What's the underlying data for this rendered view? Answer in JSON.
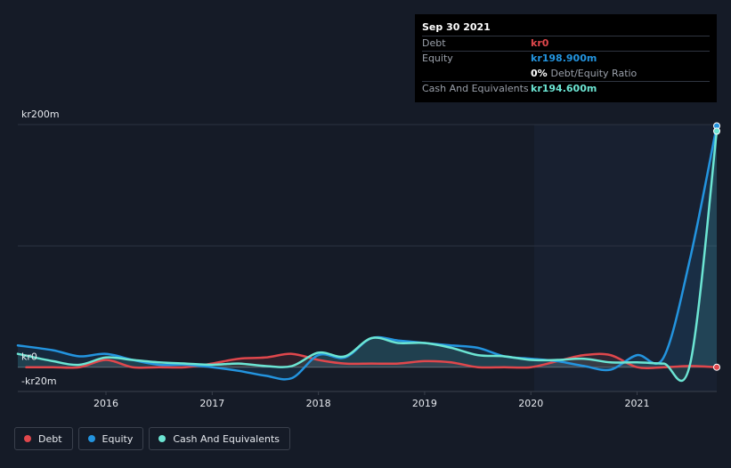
{
  "tooltip": {
    "date": "Sep 30 2021",
    "rows": [
      {
        "label": "Debt",
        "value": "kr0",
        "color": "#e0474c"
      },
      {
        "label": "Equity",
        "value": "kr198.900m",
        "color": "#2394df"
      },
      {
        "label": "",
        "value": "0%",
        "sub": "Debt/Equity Ratio",
        "color": "#ffffff"
      },
      {
        "label": "Cash And Equivalents",
        "value": "kr194.600m",
        "color": "#6ce5d3"
      }
    ]
  },
  "legend": [
    {
      "label": "Debt",
      "color": "#e0474c"
    },
    {
      "label": "Equity",
      "color": "#2394df"
    },
    {
      "label": "Cash And Equivalents",
      "color": "#6ce5d3"
    }
  ],
  "chart_data": {
    "type": "line",
    "title": "",
    "xlabel": "",
    "ylabel": "",
    "ylim": [
      -20,
      200
    ],
    "y_tick_labels": [
      {
        "value": 200,
        "label": "kr200m"
      },
      {
        "value": 0,
        "label": "kr0"
      },
      {
        "value": -20,
        "label": "-kr20m"
      }
    ],
    "x_tick_labels": [
      "2016",
      "2017",
      "2018",
      "2019",
      "2020",
      "2021"
    ],
    "xlim": [
      2015.17,
      2021.75
    ],
    "gridlines": [
      200,
      100,
      0
    ],
    "legend_position": "bottom-left",
    "series": [
      {
        "name": "Debt",
        "color": "#e0474c",
        "x": [
          2015.25,
          2015.5,
          2015.75,
          2016.0,
          2016.25,
          2016.5,
          2016.75,
          2017.0,
          2017.25,
          2017.5,
          2017.75,
          2018.0,
          2018.25,
          2018.5,
          2018.75,
          2019.0,
          2019.25,
          2019.5,
          2019.75,
          2020.0,
          2020.25,
          2020.5,
          2020.75,
          2021.0,
          2021.25,
          2021.5,
          2021.75
        ],
        "y": [
          0,
          0,
          0,
          6,
          0,
          0,
          0,
          3,
          7,
          8,
          11,
          6,
          3,
          3,
          3,
          5,
          4,
          0,
          0,
          0,
          5,
          10,
          10,
          0,
          0,
          1,
          0
        ]
      },
      {
        "name": "Equity",
        "color": "#2394df",
        "x": [
          2015.17,
          2015.5,
          2015.75,
          2016.0,
          2016.25,
          2016.5,
          2016.75,
          2017.0,
          2017.25,
          2017.5,
          2017.75,
          2018.0,
          2018.25,
          2018.5,
          2018.75,
          2019.0,
          2019.25,
          2019.5,
          2019.75,
          2020.0,
          2020.25,
          2020.5,
          2020.75,
          2021.0,
          2021.25,
          2021.5,
          2021.75
        ],
        "y": [
          18,
          14,
          9,
          11,
          6,
          2,
          2,
          0,
          -3,
          -7,
          -9,
          10,
          8,
          24,
          22,
          20,
          18,
          16,
          9,
          7,
          5,
          1,
          -2,
          10,
          8,
          90,
          198.9
        ]
      },
      {
        "name": "Cash And Equivalents",
        "color": "#6ce5d3",
        "x": [
          2015.17,
          2015.5,
          2015.75,
          2016.0,
          2016.25,
          2016.5,
          2016.75,
          2017.0,
          2017.25,
          2017.5,
          2017.75,
          2018.0,
          2018.25,
          2018.5,
          2018.75,
          2019.0,
          2019.25,
          2019.5,
          2019.75,
          2020.0,
          2020.25,
          2020.5,
          2020.75,
          2021.0,
          2021.25,
          2021.5,
          2021.75
        ],
        "y": [
          11,
          5,
          2,
          8,
          6,
          4,
          3,
          2,
          3,
          1,
          1,
          12,
          9,
          24,
          20,
          20,
          16,
          10,
          9,
          6,
          6,
          7,
          4,
          4,
          3,
          3,
          194.6
        ]
      }
    ]
  }
}
